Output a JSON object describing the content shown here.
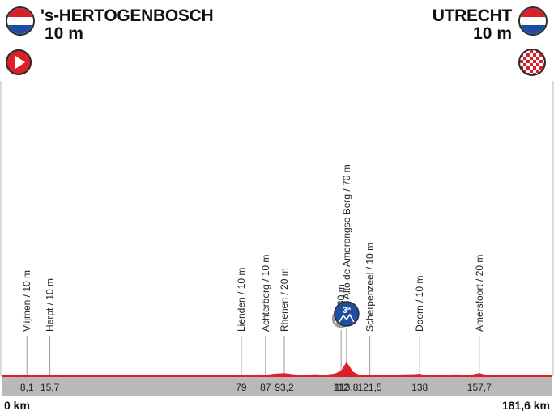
{
  "start": {
    "city": "'s-HERTOGENBOSCH",
    "altitude": "10 m",
    "flag": "netherlands-flag-icon",
    "marker": "start-play-icon"
  },
  "finish": {
    "city": "UTRECHT",
    "altitude": "10 m",
    "flag": "netherlands-flag-icon",
    "marker": "finish-checkered-icon"
  },
  "axis": {
    "start_label": "0 km",
    "end_label": "181,6 km"
  },
  "colors": {
    "profile_red": "#e01e2a",
    "baseline_grey": "#b9b9b9",
    "kom_blue": "#1f4ea1",
    "intermediate_grey": "#9a9a9a",
    "flag_red": "#d6202a",
    "flag_blue": "#1f4ea1"
  },
  "chart_data": {
    "type": "area",
    "total_km": 181.6,
    "km_ticks": [
      "8,1",
      "15,7",
      "79",
      "87",
      "93,2",
      "112",
      "113,8",
      "121,5",
      "138",
      "157,7"
    ],
    "waypoints": [
      {
        "km": 8.1,
        "label": "Vlijmen / 10 m"
      },
      {
        "km": 15.7,
        "label": "Herpt / 10 m"
      },
      {
        "km": 79,
        "label": "Lienden / 10 m"
      },
      {
        "km": 87,
        "label": "Achterberg / 10 m"
      },
      {
        "km": 93.2,
        "label": "Rhenen / 20 m"
      },
      {
        "km": 112,
        "label": "30 m",
        "marker": "intermediate-sprint"
      },
      {
        "km": 113.8,
        "label": "Alto de Amerongse Berg / 70 m",
        "marker": "kom",
        "category": "3ª"
      },
      {
        "km": 121.5,
        "label": "Scherpenzeel / 10 m"
      },
      {
        "km": 138,
        "label": "Doorn / 10 m"
      },
      {
        "km": 157.7,
        "label": "Amersfoort / 20 m"
      }
    ],
    "profile": [
      [
        0,
        10
      ],
      [
        8.1,
        10
      ],
      [
        15.7,
        10
      ],
      [
        79,
        10
      ],
      [
        84,
        14
      ],
      [
        87,
        13
      ],
      [
        90,
        17
      ],
      [
        93.2,
        20
      ],
      [
        96,
        15
      ],
      [
        101,
        11
      ],
      [
        103,
        15
      ],
      [
        107,
        13
      ],
      [
        110,
        18
      ],
      [
        112,
        30
      ],
      [
        113.8,
        70
      ],
      [
        116,
        25
      ],
      [
        118,
        12
      ],
      [
        121.5,
        10
      ],
      [
        129,
        10
      ],
      [
        132,
        14
      ],
      [
        136,
        15
      ],
      [
        138,
        17
      ],
      [
        140,
        11
      ],
      [
        143,
        12
      ],
      [
        150,
        14
      ],
      [
        155,
        13
      ],
      [
        157.7,
        20
      ],
      [
        160,
        12
      ],
      [
        168,
        10
      ],
      [
        181.6,
        10
      ]
    ]
  }
}
